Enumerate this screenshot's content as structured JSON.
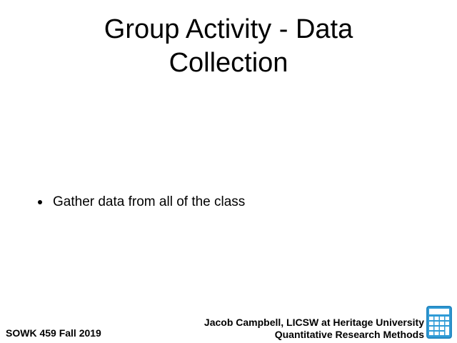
{
  "slide": {
    "title_lines": [
      "Group Activity - Data",
      "Collection"
    ],
    "bullets": [
      "Gather data from all of the class"
    ]
  },
  "footer": {
    "course": "SOWK 459 Fall 2019",
    "author": "Jacob Campbell, LICSW at Heritage University",
    "subject": "Quantitative Research Methods"
  },
  "icons": {
    "corner_icon": "calculator-icon"
  },
  "colors": {
    "calculator_body": "#2f9bd6",
    "calculator_dark": "#1f78b0",
    "calculator_screen": "#ffffff"
  }
}
